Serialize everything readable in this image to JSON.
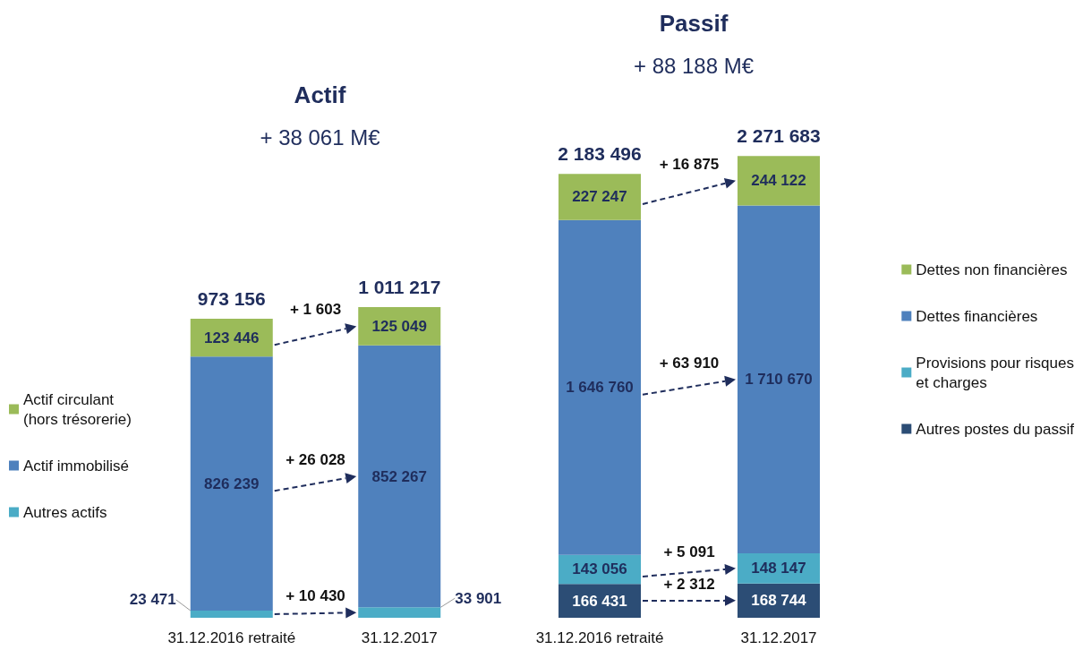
{
  "chart_data": [
    {
      "type": "bar",
      "stacked": true,
      "title": "Actif",
      "subtitle": "+ 38 061 M€",
      "categories": [
        "31.12.2016 retraité",
        "31.12.2017"
      ],
      "tick_labels": "x",
      "legend": "left",
      "series": [
        {
          "name": "Autres actifs",
          "color": "#4bacc6",
          "values": [
            23471,
            33901
          ],
          "value_labels": [
            "23 471",
            "33 901"
          ]
        },
        {
          "name": "Actif immobilisé",
          "color": "#4f81bd",
          "values": [
            826239,
            852267
          ],
          "value_labels": [
            "826 239",
            "852 267"
          ]
        },
        {
          "name": "Actif circulant\n(hors trésorerie)",
          "color": "#9bbb59",
          "values": [
            123446,
            125049
          ],
          "value_labels": [
            "123 446",
            "125 049"
          ]
        }
      ],
      "totals": [
        "973 156",
        "1 011 217"
      ],
      "annotations": [
        "+ 1 603",
        "+ 26 028",
        "+ 10 430"
      ]
    },
    {
      "type": "bar",
      "stacked": true,
      "title": "Passif",
      "subtitle": "+ 88 188 M€",
      "categories": [
        "31.12.2016 retraité",
        "31.12.2017"
      ],
      "tick_labels": "x",
      "legend": "right",
      "series": [
        {
          "name": "Autres postes du passif",
          "color": "#2c4d75",
          "values": [
            166431,
            168744
          ],
          "value_labels": [
            "166 431",
            "168 744"
          ]
        },
        {
          "name": "Provisions pour risques\net charges",
          "color": "#4bacc6",
          "values": [
            143056,
            148147
          ],
          "value_labels": [
            "143 056",
            "148 147"
          ]
        },
        {
          "name": "Dettes financières",
          "color": "#4f81bd",
          "values": [
            1646760,
            1710670
          ],
          "value_labels": [
            "1 646 760",
            "1 710 670"
          ]
        },
        {
          "name": "Dettes non financières",
          "color": "#9bbb59",
          "values": [
            227247,
            244122
          ],
          "value_labels": [
            "227 247",
            "244 122"
          ]
        }
      ],
      "totals": [
        "2 183 496",
        "2 271 683"
      ],
      "annotations": [
        "+ 16 875",
        "+ 63 910",
        "+ 5 091",
        "+ 2 312"
      ]
    }
  ]
}
